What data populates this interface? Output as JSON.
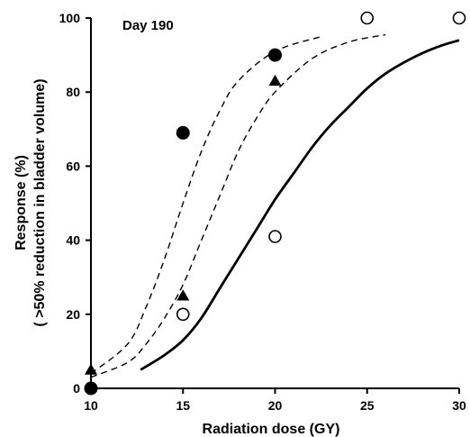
{
  "chart_data": {
    "type": "scatter",
    "annotation": "Day 190",
    "xlabel": "Radiation dose (GY)",
    "ylabel_line1": "Response (%)",
    "ylabel_line2": "( >50% reduction in bladder volume)",
    "xlim": [
      10,
      30
    ],
    "ylim": [
      0,
      100
    ],
    "x_ticks": [
      10,
      15,
      20,
      25,
      30
    ],
    "y_ticks": [
      0,
      20,
      40,
      60,
      80,
      100
    ],
    "grid": false,
    "series": [
      {
        "marker": "circle-filled",
        "points": [
          {
            "x": 10,
            "y": 0
          },
          {
            "x": 15,
            "y": 69
          },
          {
            "x": 20,
            "y": 90
          }
        ]
      },
      {
        "marker": "triangle-filled",
        "points": [
          {
            "x": 10,
            "y": 5
          },
          {
            "x": 15,
            "y": 25
          },
          {
            "x": 20,
            "y": 83
          }
        ]
      },
      {
        "marker": "circle-open",
        "points": [
          {
            "x": 15,
            "y": 20
          },
          {
            "x": 20,
            "y": 41
          },
          {
            "x": 25,
            "y": 100
          },
          {
            "x": 30,
            "y": 100
          }
        ]
      }
    ],
    "curves": [
      {
        "style": "dashed",
        "points": [
          [
            10,
            4
          ],
          [
            12,
            12
          ],
          [
            13,
            22
          ],
          [
            14,
            35
          ],
          [
            15,
            50
          ],
          [
            16,
            64
          ],
          [
            17,
            75
          ],
          [
            18,
            83
          ],
          [
            20,
            91
          ],
          [
            22.5,
            95
          ]
        ]
      },
      {
        "style": "dashed",
        "points": [
          [
            10,
            3
          ],
          [
            12,
            7
          ],
          [
            13,
            12
          ],
          [
            14,
            19
          ],
          [
            15,
            28
          ],
          [
            16,
            40
          ],
          [
            17,
            52
          ],
          [
            18,
            64
          ],
          [
            19,
            73
          ],
          [
            20,
            80
          ],
          [
            22,
            89
          ],
          [
            24,
            93.5
          ],
          [
            26,
            95.5
          ]
        ]
      },
      {
        "style": "solid",
        "points": [
          [
            12.7,
            5
          ],
          [
            14,
            9
          ],
          [
            15,
            13
          ],
          [
            16,
            19
          ],
          [
            17,
            27
          ],
          [
            18,
            35
          ],
          [
            19,
            43
          ],
          [
            20,
            51
          ],
          [
            21,
            58
          ],
          [
            22,
            65
          ],
          [
            23,
            71
          ],
          [
            24,
            76
          ],
          [
            25,
            81
          ],
          [
            26,
            85
          ],
          [
            27,
            88
          ],
          [
            28,
            90.5
          ],
          [
            29,
            92.5
          ],
          [
            30,
            94
          ]
        ]
      }
    ]
  }
}
